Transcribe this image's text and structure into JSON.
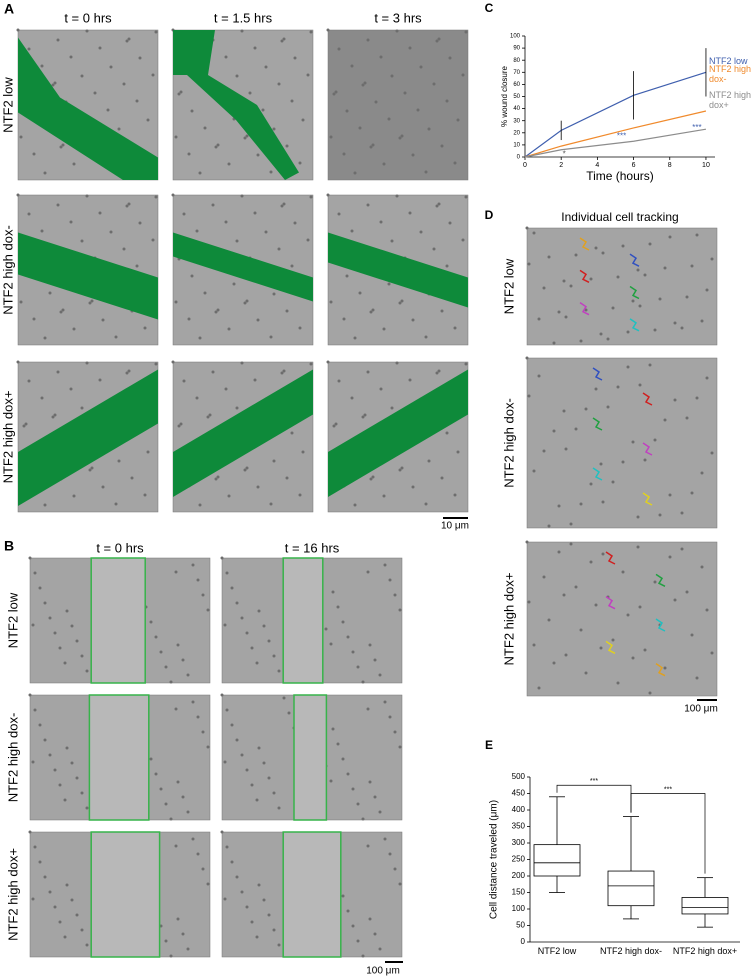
{
  "panel_a": {
    "label": "A",
    "columns": [
      "t = 0 hrs",
      "t = 1.5 hrs",
      "t = 3 hrs"
    ],
    "rows": [
      "NTF2 low",
      "NTF2 high dox-",
      "NTF2 high dox+"
    ],
    "scale_bar": "10 μm"
  },
  "panel_b": {
    "label": "B",
    "columns": [
      "t = 0 hrs",
      "t = 16 hrs"
    ],
    "rows": [
      "NTF2 low",
      "NTF2 high dox-",
      "NTF2 high dox+"
    ],
    "scale_bar": "100 μm"
  },
  "panel_c": {
    "label": "C"
  },
  "panel_d": {
    "label": "D",
    "title": "Individual cell tracking",
    "rows": [
      "NTF2 low",
      "NTF2 high dox-",
      "NTF2 high dox+"
    ],
    "scale_bar": "100 μm"
  },
  "panel_e": {
    "label": "E"
  },
  "chart_data": [
    {
      "type": "line",
      "xlabel": "Time (hours)",
      "ylabel": "% wound closure",
      "x": [
        0,
        2,
        6,
        10
      ],
      "xlim": [
        0,
        10.5
      ],
      "xticks": [
        0,
        2,
        4,
        6,
        8,
        10
      ],
      "ylim": [
        0,
        100
      ],
      "yticks": [
        0,
        10,
        20,
        30,
        40,
        50,
        60,
        70,
        80,
        90,
        100
      ],
      "series": [
        {
          "name": "NTF2 low",
          "color": "#3f5fae",
          "values": [
            0,
            22,
            51,
            70
          ],
          "errors": [
            0,
            8,
            20,
            20
          ]
        },
        {
          "name": "NTF2 high dox-",
          "color": "#f08a2c",
          "values": [
            0,
            9,
            24,
            38
          ]
        },
        {
          "name": "NTF2 high dox+",
          "color": "#8c8c8c",
          "values": [
            0,
            6,
            13,
            23
          ]
        }
      ],
      "annotations": [
        "*",
        "***",
        "***"
      ]
    },
    {
      "type": "box",
      "ylabel": "Cell distance traveled (μm)",
      "categories": [
        "NTF2 low",
        "NTF2 high dox-",
        "NTF2 high dox+"
      ],
      "ylim": [
        0,
        500
      ],
      "yticks": [
        0,
        50,
        100,
        150,
        200,
        250,
        300,
        350,
        400,
        450,
        500
      ],
      "stats": [
        {
          "min": 150,
          "q1": 200,
          "median": 240,
          "q3": 295,
          "max": 440
        },
        {
          "min": 70,
          "q1": 110,
          "median": 170,
          "q3": 215,
          "max": 380
        },
        {
          "min": 45,
          "q1": 85,
          "median": 105,
          "q3": 135,
          "max": 195
        }
      ],
      "significance": [
        "***",
        "***"
      ]
    }
  ]
}
